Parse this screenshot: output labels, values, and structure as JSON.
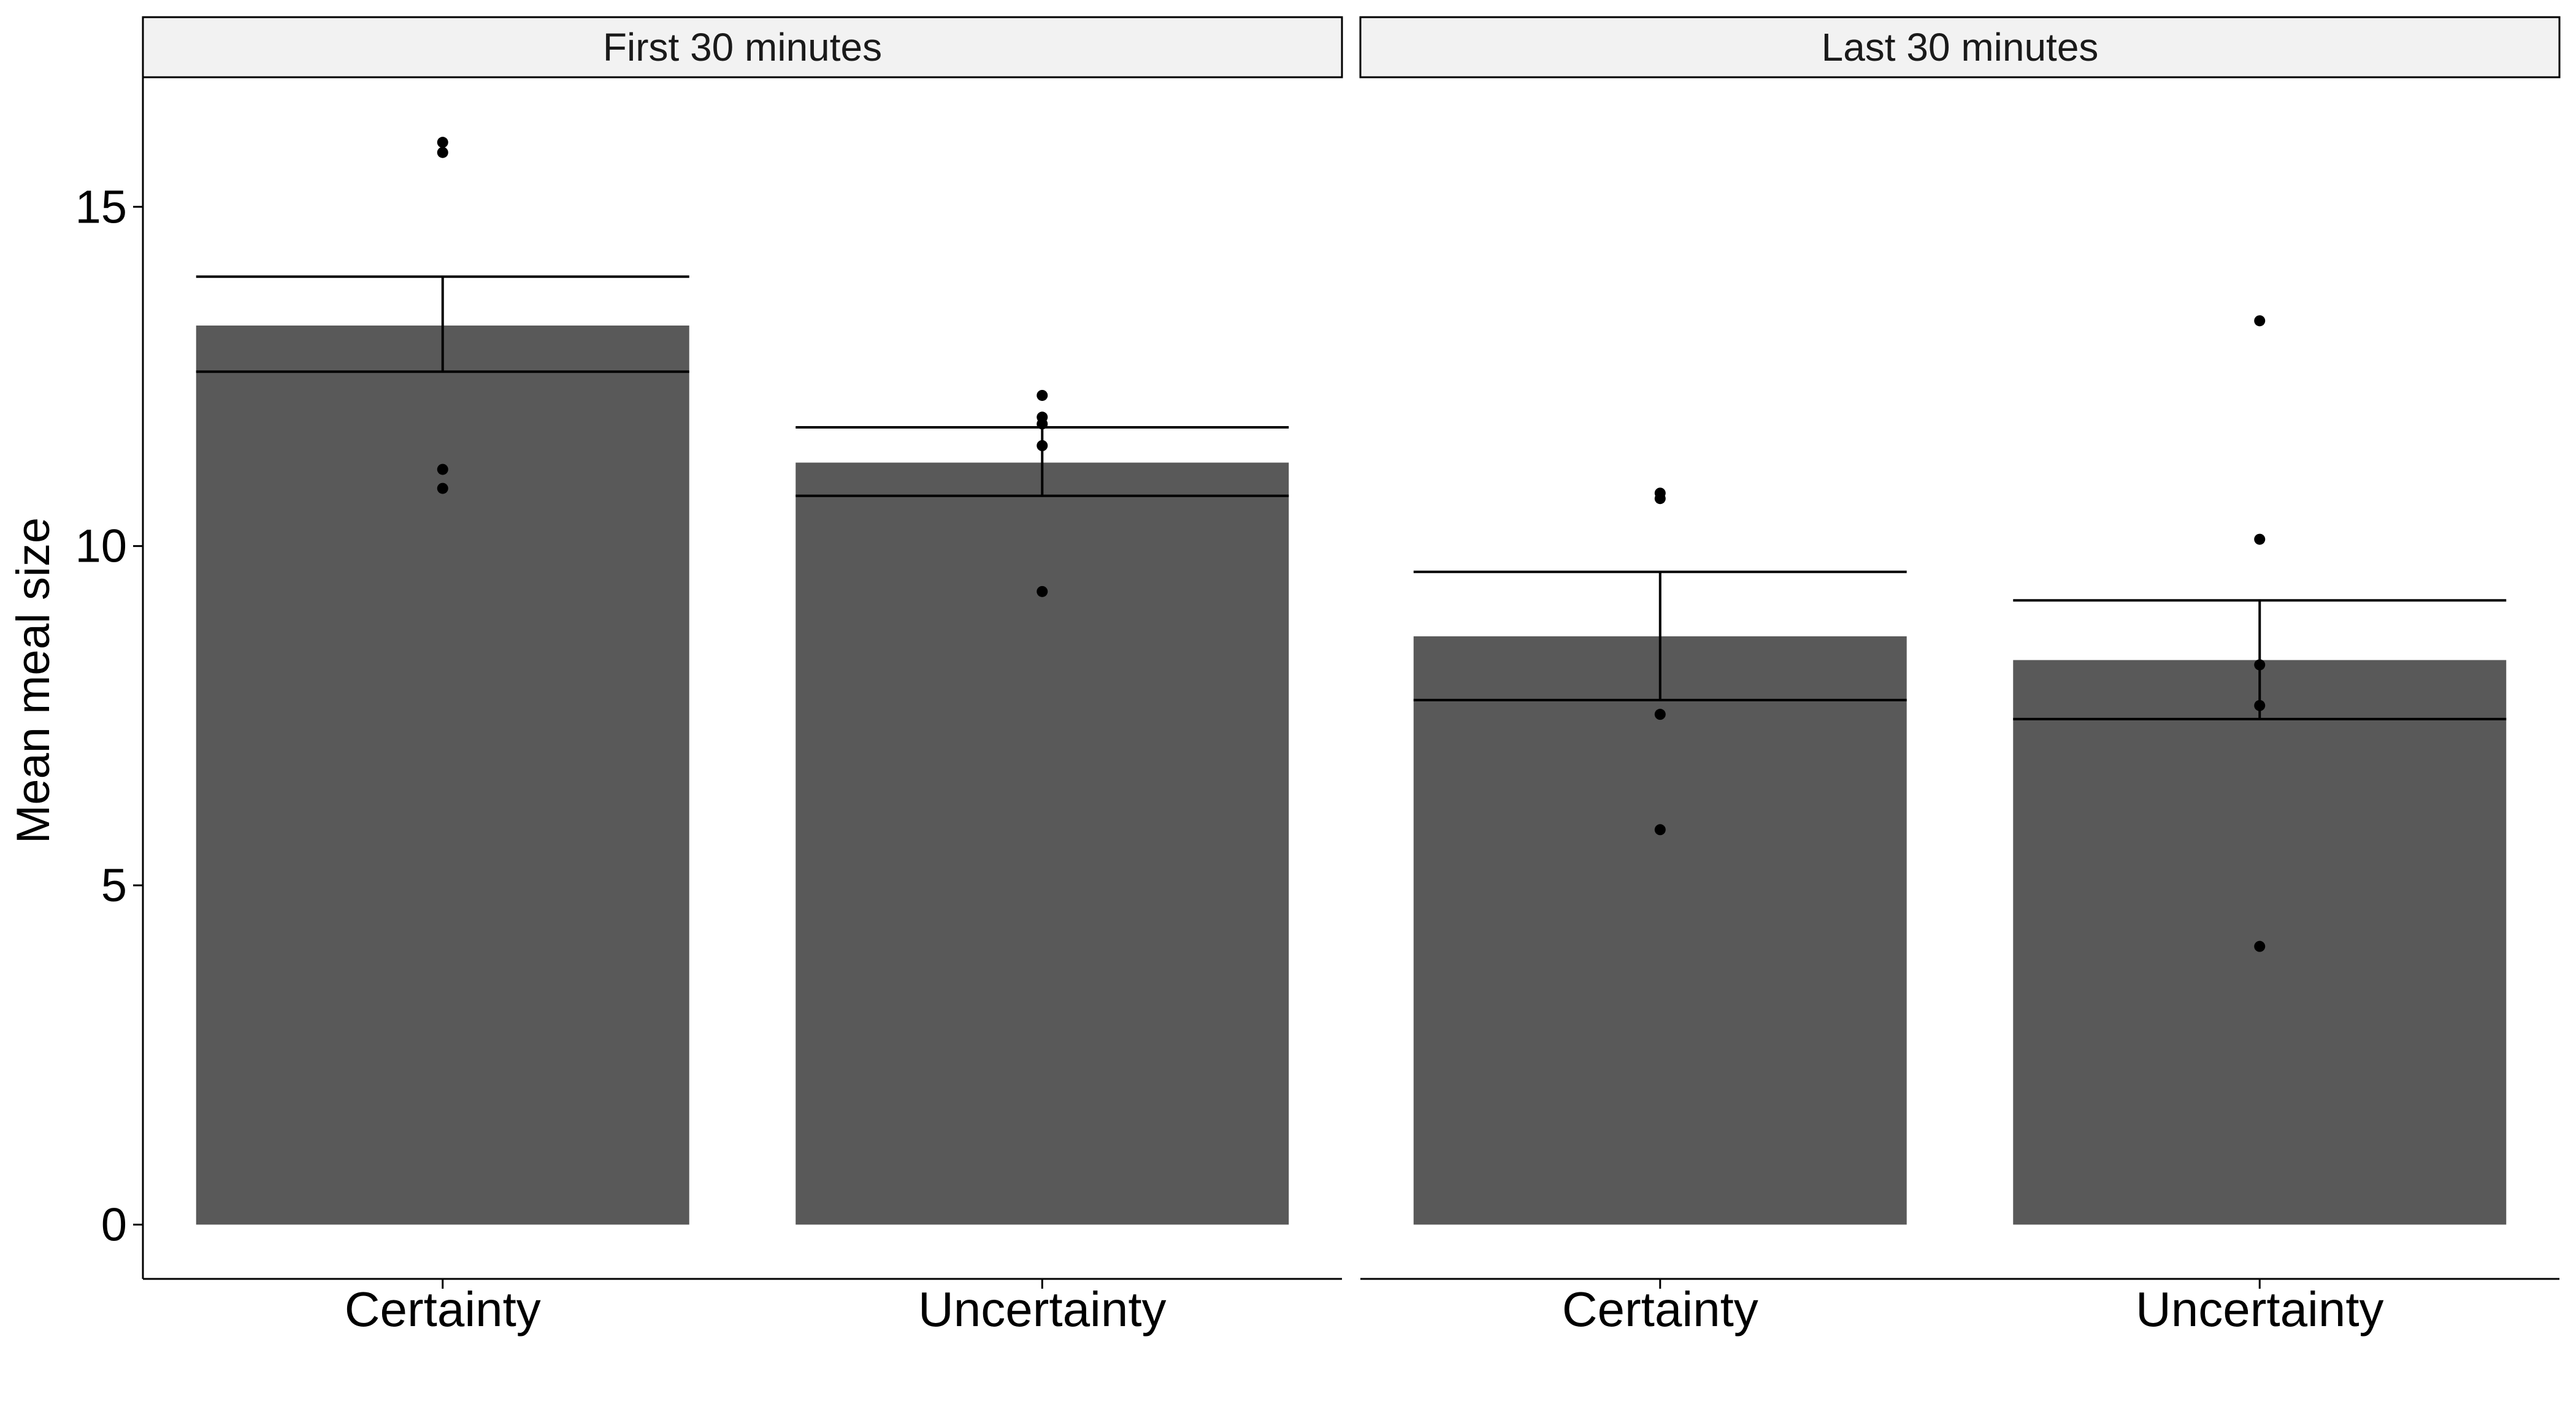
{
  "chart_data": {
    "type": "bar",
    "ylabel": "Mean meal size",
    "ylim": [
      -0.8,
      16.9
    ],
    "yticks": [
      0,
      5,
      10,
      15
    ],
    "ytick_labels": [
      "0",
      "5",
      "10",
      "15"
    ],
    "grid": false,
    "colors": {
      "bar": "#595959",
      "strip": "#f2f2f2",
      "ink": "#000000"
    },
    "panels": [
      {
        "title": "First 30 minutes",
        "categories": [
          "Certainty",
          "Uncertainty"
        ],
        "means": [
          13.25,
          11.23
        ],
        "error_low": [
          12.57,
          10.74
        ],
        "error_high": [
          13.97,
          11.75
        ],
        "points": [
          [
            15.95,
            15.8,
            11.13,
            10.85
          ],
          [
            12.22,
            11.9,
            11.8,
            11.48,
            9.33
          ]
        ]
      },
      {
        "title": "Last 30 minutes",
        "categories": [
          "Certainty",
          "Uncertainty"
        ],
        "means": [
          8.67,
          8.32
        ],
        "error_low": [
          7.73,
          7.45
        ],
        "error_high": [
          9.62,
          9.2
        ],
        "points": [
          [
            10.78,
            10.7,
            7.52,
            5.82
          ],
          [
            13.32,
            10.1,
            8.25,
            7.65,
            4.1
          ]
        ]
      }
    ]
  }
}
